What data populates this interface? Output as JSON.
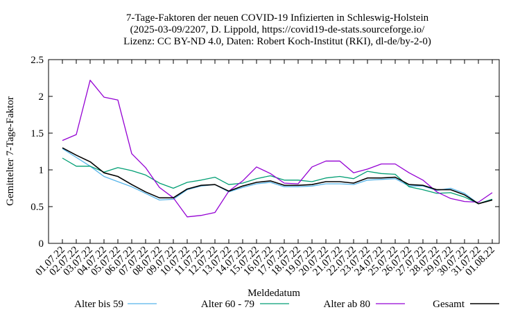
{
  "chart_data": {
    "type": "line",
    "title_lines": [
      "7-Tage-Faktoren der neuen COVID-19 Infizierten in Schleswig-Holstein",
      "(2025-03-09/2207, D. Lippold, https://covid19-de-stats.sourceforge.io/",
      "Lizenz: CC BY-ND 4.0, Daten: Robert Koch-Institut (RKI), dl-de/by-2-0)"
    ],
    "xlabel": "Meldedatum",
    "ylabel": "Gemittelter 7-Tage-Faktor",
    "ylim": [
      0,
      2.5
    ],
    "yticks": [
      "0",
      "0.5",
      "1",
      "1.5",
      "2",
      "2.5"
    ],
    "x": [
      "01.07.22",
      "02.07.22",
      "03.07.22",
      "04.07.22",
      "05.07.22",
      "06.07.22",
      "07.07.22",
      "08.07.22",
      "09.07.22",
      "10.07.22",
      "11.07.22",
      "12.07.22",
      "13.07.22",
      "14.07.22",
      "15.07.22",
      "16.07.22",
      "17.07.22",
      "18.07.22",
      "19.07.22",
      "20.07.22",
      "21.07.22",
      "22.07.22",
      "23.07.22",
      "24.07.22",
      "25.07.22",
      "26.07.22",
      "27.07.22",
      "28.07.22",
      "29.07.22",
      "30.07.22",
      "31.07.22",
      "01.08.22"
    ],
    "legend_position": "bottom",
    "grid": false,
    "series": [
      {
        "name": "Alter bis 59",
        "color": "#56b4e9",
        "values": [
          1.29,
          1.17,
          1.05,
          0.91,
          0.84,
          0.77,
          0.68,
          0.59,
          0.6,
          0.73,
          0.78,
          0.8,
          0.7,
          0.76,
          0.81,
          0.83,
          0.77,
          0.77,
          0.78,
          0.81,
          0.81,
          0.8,
          0.86,
          0.87,
          0.88,
          0.78,
          0.78,
          0.72,
          0.75,
          0.68,
          0.54,
          0.6
        ]
      },
      {
        "name": "Alter 60 - 79",
        "color": "#009e73",
        "values": [
          1.16,
          1.05,
          1.05,
          0.97,
          1.03,
          0.99,
          0.93,
          0.82,
          0.75,
          0.83,
          0.86,
          0.9,
          0.8,
          0.82,
          0.88,
          0.92,
          0.86,
          0.86,
          0.84,
          0.89,
          0.91,
          0.88,
          0.98,
          0.95,
          0.94,
          0.77,
          0.73,
          0.68,
          0.69,
          0.63,
          0.54,
          0.6
        ]
      },
      {
        "name": "Alter ab 80",
        "color": "#9400d3",
        "values": [
          1.4,
          1.48,
          2.22,
          1.99,
          1.95,
          1.22,
          1.03,
          0.76,
          0.62,
          0.36,
          0.38,
          0.42,
          0.71,
          0.85,
          1.04,
          0.95,
          0.82,
          0.81,
          1.04,
          1.12,
          1.12,
          0.96,
          1.01,
          1.08,
          1.08,
          0.96,
          0.86,
          0.7,
          0.61,
          0.57,
          0.56,
          0.69
        ]
      },
      {
        "name": "Gesamt",
        "color": "#000000",
        "values": [
          1.3,
          1.2,
          1.11,
          0.96,
          0.91,
          0.8,
          0.7,
          0.62,
          0.62,
          0.74,
          0.79,
          0.8,
          0.71,
          0.78,
          0.83,
          0.85,
          0.79,
          0.79,
          0.8,
          0.84,
          0.84,
          0.82,
          0.89,
          0.89,
          0.9,
          0.8,
          0.79,
          0.73,
          0.73,
          0.66,
          0.54,
          0.59
        ]
      }
    ]
  }
}
